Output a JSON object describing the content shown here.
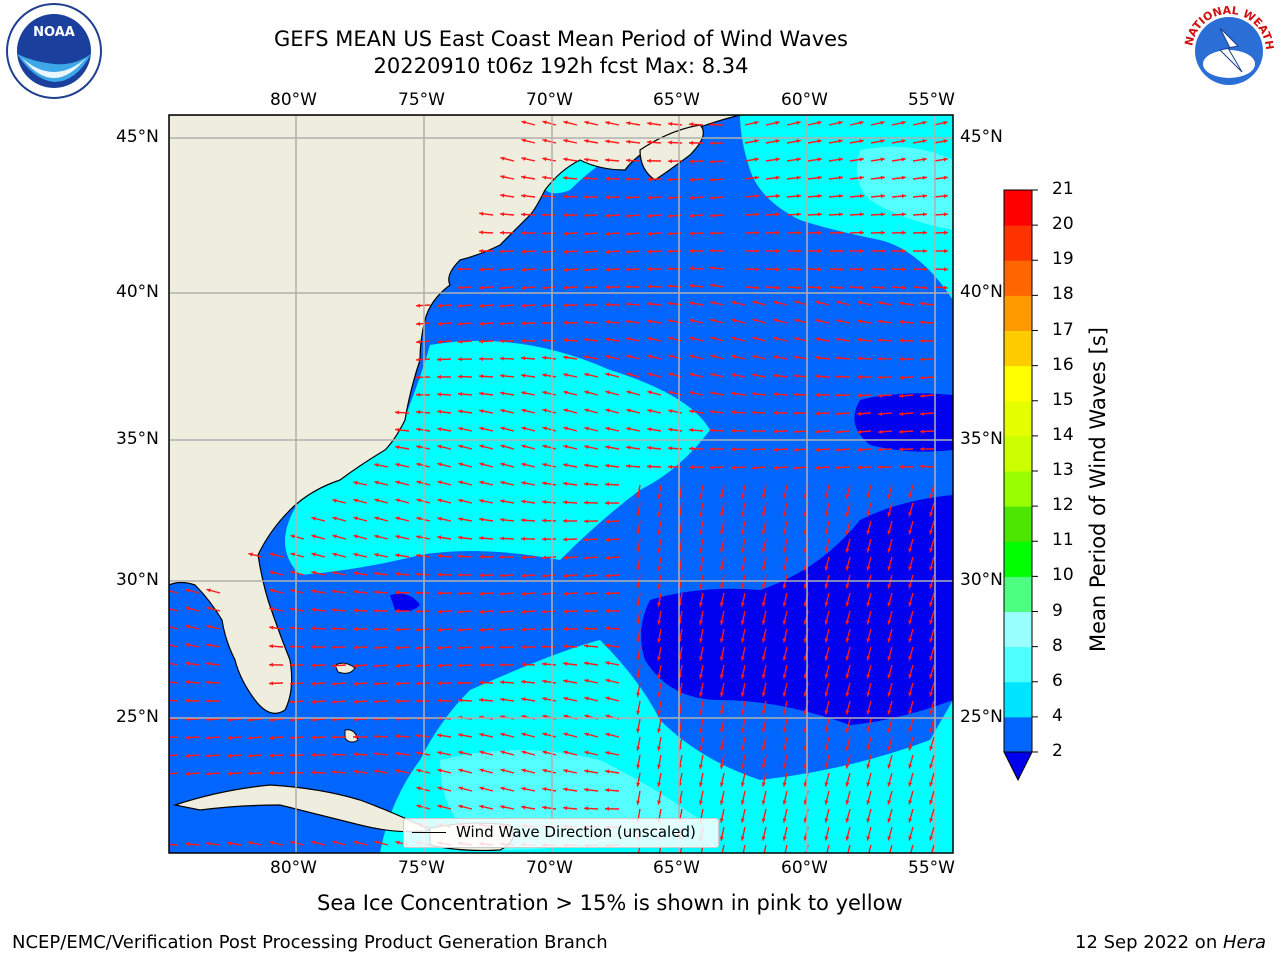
{
  "header": {
    "title_line1": "GEFS MEAN US East Coast Mean Period of Wind Waves",
    "title_line2": "20220910 t06z 192h fcst   Max: 8.34"
  },
  "map": {
    "lon_ticks": [
      "80°W",
      "75°W",
      "70°W",
      "65°W",
      "60°W",
      "55°W"
    ],
    "lat_ticks": [
      "45°N",
      "40°N",
      "35°N",
      "30°N",
      "25°N"
    ],
    "land_color": "#efedde",
    "arrow_color": "#ff1a1a"
  },
  "legend": {
    "label": "Wind Wave Direction (unscaled)"
  },
  "colorbar": {
    "title": "Mean Period of Wind Waves [s]",
    "ticks": [
      "2",
      "4",
      "6",
      "8",
      "9",
      "10",
      "11",
      "12",
      "13",
      "14",
      "15",
      "16",
      "17",
      "18",
      "19",
      "20",
      "21"
    ],
    "colors": [
      "#0066ff",
      "#00e5ff",
      "#4dffff",
      "#99ffff",
      "#4dff80",
      "#00ff00",
      "#4de600",
      "#99ff00",
      "#ccff00",
      "#e6ff00",
      "#ffff00",
      "#ffcc00",
      "#ff9900",
      "#ff6600",
      "#ff3300",
      "#ff0000"
    ],
    "under_color": "#0000ee"
  },
  "caption": "Sea Ice Concentration > 15% is shown in pink to yellow",
  "footer": {
    "left": "NCEP/EMC/Verification Post Processing Product Generation Branch",
    "right_date": "12 Sep 2022 on ",
    "right_machine": "Hera"
  },
  "logos": {
    "noaa_text": "NOAA",
    "nws_text": "NATIONAL WEATHER SERVICE"
  }
}
